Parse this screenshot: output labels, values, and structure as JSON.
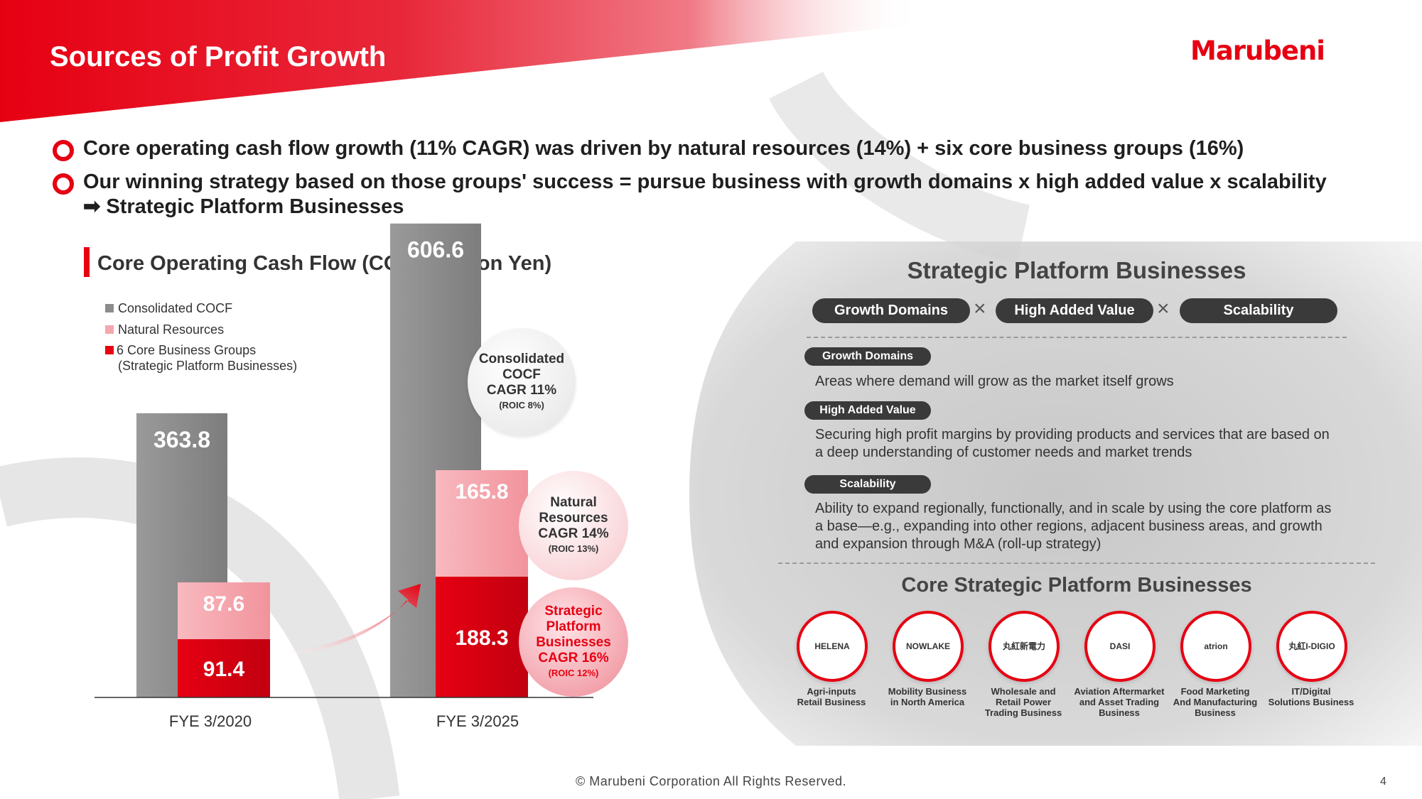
{
  "header": {
    "title": "Sources of Profit Growth",
    "logo": "Marubeni"
  },
  "bullets": [
    {
      "line1": "Core operating cash flow growth (11% CAGR) was driven by natural resources (14%) + six core business groups (16%)"
    },
    {
      "line1": "Our winning strategy based on those groups' success = pursue business with growth domains x high added value x scalability",
      "line2": "➡ Strategic Platform Businesses"
    }
  ],
  "chart_data": {
    "type": "bar",
    "title": "Core Operating Cash Flow (COCF; Billion Yen)",
    "categories": [
      "FYE 3/2020",
      "FYE 3/2025"
    ],
    "series": [
      {
        "name": "Consolidated COCF",
        "values": [
          363.8,
          606.6
        ],
        "color": "#8c8c8c"
      },
      {
        "name": "Natural Resources",
        "values": [
          87.6,
          165.8
        ],
        "color": "#f4a6ad"
      },
      {
        "name": "6 Core Business Groups (Strategic Platform Businesses)",
        "values": [
          91.4,
          188.3
        ],
        "color": "#e60012"
      }
    ],
    "ylim": [
      0,
      650
    ],
    "legend": "top-left",
    "legend_entries": [
      "Consolidated COCF",
      "Natural Resources",
      "6 Core Business Groups",
      "(Strategic Platform Businesses)"
    ],
    "labels": [
      "363.8",
      "87.6",
      "91.4",
      "606.6",
      "165.8",
      "188.3"
    ],
    "annotations": [
      {
        "lines": [
          "Consolidated",
          "COCF",
          "CAGR 11%"
        ],
        "sub": "(ROIC 8%)"
      },
      {
        "lines": [
          "Natural",
          "Resources",
          "CAGR 14%"
        ],
        "sub": "(ROIC 13%)"
      },
      {
        "lines": [
          "Strategic",
          "Platform",
          "Businesses",
          "CAGR 16%"
        ],
        "sub": "(ROIC 12%)"
      }
    ]
  },
  "panel": {
    "title": "Strategic Platform Businesses",
    "pills": [
      "Growth Domains",
      "High Added Value",
      "Scalability"
    ],
    "times": "×",
    "items": [
      {
        "tag": "Growth Domains",
        "desc": [
          "Areas where demand will grow as the market itself grows"
        ]
      },
      {
        "tag": "High Added Value",
        "desc": [
          "Securing high profit margins by providing products and services that are based on",
          "a deep understanding of customer needs and market trends"
        ]
      },
      {
        "tag": "Scalability",
        "desc": [
          "Ability to expand regionally, functionally, and in scale by using the core platform as",
          "a base—e.g., expanding into other regions, adjacent business areas, and growth",
          "and expansion through M&A (roll-up strategy)"
        ]
      }
    ],
    "core_title": "Core Strategic Platform Businesses",
    "businesses": [
      {
        "logo": "HELENA",
        "label": [
          "Agri-inputs",
          "Retail Business"
        ]
      },
      {
        "logo": "NOWLAKE",
        "label": [
          "Mobility Business",
          "in North America"
        ]
      },
      {
        "logo": "丸紅新電力",
        "label": [
          "Wholesale and",
          "Retail Power",
          "Trading Business"
        ]
      },
      {
        "logo": "DASI",
        "label": [
          "Aviation Aftermarket",
          "and Asset Trading",
          "Business"
        ]
      },
      {
        "logo": "atrion",
        "label": [
          "Food Marketing",
          "And Manufacturing",
          "Business"
        ]
      },
      {
        "logo": "丸紅I-DIGIO",
        "label": [
          "IT/Digital",
          "Solutions Business"
        ]
      }
    ]
  },
  "footer": {
    "copyright": "© Marubeni Corporation All Rights Reserved.",
    "page": "4"
  }
}
